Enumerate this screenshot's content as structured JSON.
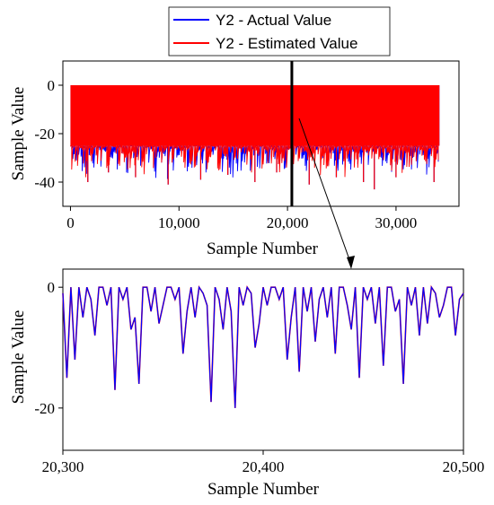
{
  "chart_data": [
    {
      "id": "top",
      "type": "line",
      "xlabel": "Sample Number",
      "ylabel": "Sample Value",
      "xlim": [
        -700,
        35800
      ],
      "ylim": [
        -50,
        10
      ],
      "xticks": [
        0,
        10000,
        20000,
        30000
      ],
      "xtick_labels": [
        "0",
        "10,000",
        "20,000",
        "30,000"
      ],
      "yticks": [
        -40,
        -20,
        0
      ],
      "ytick_labels": [
        "-40",
        "-20",
        "0"
      ],
      "legend": {
        "position": "top-right",
        "entries": [
          "Y2 - Actual Value",
          "Y2 - Estimated Value"
        ]
      },
      "grid": false,
      "series": [
        {
          "name": "Y2 - Actual Value",
          "color": "#0000ff",
          "x_range": [
            0,
            34000
          ],
          "y_range": [
            -43,
            0
          ],
          "typical_lower_envelope": -25,
          "sample_minima": [
            [
              1600,
              -40
            ],
            [
              3500,
              -36
            ],
            [
              6000,
              -38
            ],
            [
              9000,
              -41
            ],
            [
              12000,
              -39
            ],
            [
              14500,
              -37
            ],
            [
              17000,
              -40
            ],
            [
              19000,
              -36
            ],
            [
              22000,
              -41
            ],
            [
              24500,
              -38
            ],
            [
              27000,
              -40
            ],
            [
              28000,
              -43
            ],
            [
              30000,
              -38
            ],
            [
              33500,
              -40
            ]
          ]
        },
        {
          "name": "Y2 - Estimated Value",
          "color": "#ff0000",
          "x_range": [
            0,
            34000
          ],
          "y_range": [
            -43,
            0
          ],
          "typical_lower_envelope": -25,
          "sample_minima": [
            [
              1600,
              -40
            ],
            [
              3500,
              -36
            ],
            [
              6000,
              -38
            ],
            [
              9000,
              -41
            ],
            [
              12000,
              -39
            ],
            [
              14500,
              -37
            ],
            [
              17000,
              -40
            ],
            [
              19000,
              -36
            ],
            [
              22000,
              -41
            ],
            [
              24500,
              -38
            ],
            [
              27000,
              -40
            ],
            [
              28000,
              -43
            ],
            [
              30000,
              -38
            ],
            [
              33500,
              -40
            ]
          ]
        }
      ],
      "annotations": [
        {
          "type": "vertical-marker",
          "x": 20400,
          "from": "top",
          "to": "bottom"
        },
        {
          "type": "zoom-arrow",
          "target": "bottom"
        }
      ]
    },
    {
      "id": "bottom",
      "type": "line",
      "xlabel": "Sample Number",
      "ylabel": "Sample Value",
      "xlim": [
        20300,
        20500
      ],
      "ylim": [
        -27,
        3
      ],
      "xticks": [
        20300,
        20400,
        20500
      ],
      "xtick_labels": [
        "20,300",
        "20,400",
        "20,500"
      ],
      "yticks": [
        -20,
        0
      ],
      "ytick_labels": [
        "-20",
        "0"
      ],
      "grid": false,
      "series": [
        {
          "name": "Y2 - Estimated Value",
          "color": "#ff0000",
          "x": [
            20300,
            20302,
            20304,
            20306,
            20308,
            20310,
            20312,
            20314,
            20316,
            20318,
            20320,
            20322,
            20324,
            20326,
            20328,
            20330,
            20332,
            20334,
            20336,
            20338,
            20340,
            20342,
            20344,
            20346,
            20348,
            20350,
            20352,
            20354,
            20356,
            20358,
            20360,
            20362,
            20364,
            20366,
            20368,
            20370,
            20372,
            20374,
            20376,
            20378,
            20380,
            20382,
            20384,
            20386,
            20388,
            20390,
            20392,
            20394,
            20396,
            20398,
            20400,
            20402,
            20404,
            20406,
            20408,
            20410,
            20412,
            20414,
            20416,
            20418,
            20420,
            20422,
            20424,
            20426,
            20428,
            20430,
            20432,
            20434,
            20436,
            20438,
            20440,
            20442,
            20444,
            20446,
            20448,
            20450,
            20452,
            20454,
            20456,
            20458,
            20460,
            20462,
            20464,
            20466,
            20468,
            20470,
            20472,
            20474,
            20476,
            20478,
            20480,
            20482,
            20484,
            20486,
            20488,
            20490,
            20492,
            20494,
            20496,
            20498,
            20500
          ],
          "y": [
            -1,
            -15,
            0,
            -12,
            0,
            -5,
            0,
            -2,
            -8,
            0,
            0,
            -3,
            0,
            -17,
            0,
            -2,
            0,
            -7,
            -5,
            -16,
            0,
            0,
            -4,
            0,
            -6,
            -3,
            0,
            0,
            -2,
            0,
            -11,
            -4,
            0,
            -5,
            0,
            -1,
            -3,
            -19,
            0,
            -2,
            -7,
            0,
            -4,
            -20,
            0,
            -3,
            0,
            -1,
            -10,
            -6,
            0,
            -3,
            0,
            0,
            -2,
            0,
            -12,
            -5,
            0,
            -14,
            0,
            -4,
            0,
            -9,
            -2,
            0,
            -5,
            0,
            -11,
            0,
            0,
            -3,
            -7,
            0,
            -15,
            0,
            -2,
            0,
            -6,
            0,
            -13,
            0,
            0,
            -4,
            -2,
            -16,
            0,
            -3,
            0,
            -8,
            0,
            -6,
            0,
            -1,
            -5,
            -3,
            0,
            0,
            -8,
            -2,
            -1
          ]
        },
        {
          "name": "Y2 - Actual Value",
          "color": "#0000ff",
          "x": [
            20300,
            20302,
            20304,
            20306,
            20308,
            20310,
            20312,
            20314,
            20316,
            20318,
            20320,
            20322,
            20324,
            20326,
            20328,
            20330,
            20332,
            20334,
            20336,
            20338,
            20340,
            20342,
            20344,
            20346,
            20348,
            20350,
            20352,
            20354,
            20356,
            20358,
            20360,
            20362,
            20364,
            20366,
            20368,
            20370,
            20372,
            20374,
            20376,
            20378,
            20380,
            20382,
            20384,
            20386,
            20388,
            20390,
            20392,
            20394,
            20396,
            20398,
            20400,
            20402,
            20404,
            20406,
            20408,
            20410,
            20412,
            20414,
            20416,
            20418,
            20420,
            20422,
            20424,
            20426,
            20428,
            20430,
            20432,
            20434,
            20436,
            20438,
            20440,
            20442,
            20444,
            20446,
            20448,
            20450,
            20452,
            20454,
            20456,
            20458,
            20460,
            20462,
            20464,
            20466,
            20468,
            20470,
            20472,
            20474,
            20476,
            20478,
            20480,
            20482,
            20484,
            20486,
            20488,
            20490,
            20492,
            20494,
            20496,
            20498,
            20500
          ],
          "y": [
            -1,
            -15,
            0,
            -12,
            0,
            -5,
            0,
            -2,
            -8,
            0,
            0,
            -3,
            0,
            -17,
            0,
            -2,
            0,
            -7,
            -5,
            -16,
            0,
            0,
            -4,
            0,
            -6,
            -3,
            0,
            0,
            -2,
            0,
            -11,
            -4,
            0,
            -5,
            0,
            -1,
            -3,
            -19,
            0,
            -2,
            -7,
            0,
            -4,
            -20,
            0,
            -3,
            0,
            -1,
            -10,
            -6,
            0,
            -3,
            0,
            0,
            -2,
            0,
            -12,
            -5,
            0,
            -14,
            0,
            -4,
            0,
            -9,
            -2,
            0,
            -5,
            0,
            -11,
            0,
            0,
            -3,
            -7,
            0,
            -15,
            0,
            -2,
            0,
            -6,
            0,
            -13,
            0,
            0,
            -4,
            -2,
            -16,
            0,
            -3,
            0,
            -8,
            0,
            -6,
            0,
            -1,
            -5,
            -3,
            0,
            0,
            -8,
            -2,
            -1
          ]
        }
      ]
    }
  ]
}
